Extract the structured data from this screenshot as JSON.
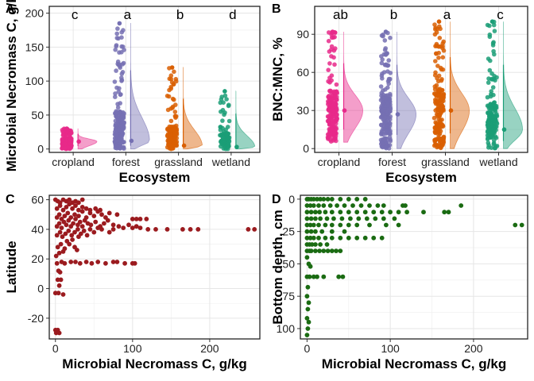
{
  "chart_data": [
    {
      "panel": "A",
      "type": "scatter",
      "subtype": "raincloud (jittered points + half violin + median)",
      "xlabel": "Ecosystem",
      "ylabel": "Microbial Necromass C, g/kg",
      "categories": [
        "cropland",
        "forest",
        "grassland",
        "wetland"
      ],
      "significance_letters": [
        "c",
        "a",
        "b",
        "d"
      ],
      "ylim": [
        -5,
        210
      ],
      "yticks": [
        0,
        50,
        100,
        150,
        200
      ],
      "grid": true,
      "series": [
        {
          "category": "cropland",
          "color": "#E7298A",
          "median": 11,
          "range": [
            0,
            30
          ],
          "n": 140
        },
        {
          "category": "forest",
          "color": "#7570B3",
          "median": 12,
          "range": [
            0,
            185
          ],
          "n": 200
        },
        {
          "category": "grassland",
          "color": "#D95F02",
          "median": 5,
          "range": [
            0,
            120
          ],
          "n": 160
        },
        {
          "category": "wetland",
          "color": "#1B9E77",
          "median": 3,
          "range": [
            0,
            85
          ],
          "n": 90
        }
      ]
    },
    {
      "panel": "B",
      "type": "scatter",
      "subtype": "raincloud (jittered points + half violin + median)",
      "xlabel": "Ecosystem",
      "ylabel": "BNC:MNC, %",
      "categories": [
        "cropland",
        "forest",
        "grassland",
        "wetland"
      ],
      "significance_letters": [
        "ab",
        "b",
        "a",
        "c"
      ],
      "ylim": [
        -3,
        112
      ],
      "yticks": [
        0,
        30,
        60,
        90
      ],
      "grid": true,
      "series": [
        {
          "category": "cropland",
          "color": "#E7298A",
          "median": 30,
          "range": [
            5,
            92
          ],
          "n": 180
        },
        {
          "category": "forest",
          "color": "#7570B3",
          "median": 27,
          "range": [
            0,
            92
          ],
          "n": 200
        },
        {
          "category": "grassland",
          "color": "#D95F02",
          "median": 30,
          "range": [
            0,
            100
          ],
          "n": 180
        },
        {
          "category": "wetland",
          "color": "#1B9E77",
          "median": 15,
          "range": [
            0,
            100
          ],
          "n": 160
        }
      ]
    },
    {
      "panel": "C",
      "type": "scatter",
      "xlabel": "Microbial Necromass C, g/kg",
      "ylabel": "Latitude",
      "xlim": [
        -8,
        265
      ],
      "ylim": [
        -34,
        63
      ],
      "xticks": [
        0,
        100,
        200
      ],
      "yticks": [
        -20,
        0,
        20,
        40,
        60
      ],
      "color": "#9B1B1F",
      "grid": true,
      "points": [
        [
          0,
          -28
        ],
        [
          2,
          -29
        ],
        [
          1,
          -30
        ],
        [
          3,
          -28
        ],
        [
          5,
          -30
        ],
        [
          0,
          -3
        ],
        [
          4,
          -3
        ],
        [
          10,
          -4
        ],
        [
          5,
          2
        ],
        [
          3,
          6
        ],
        [
          7,
          6
        ],
        [
          4,
          12
        ],
        [
          6,
          11
        ],
        [
          2,
          17
        ],
        [
          8,
          18
        ],
        [
          12,
          17
        ],
        [
          20,
          18
        ],
        [
          26,
          18
        ],
        [
          32,
          17
        ],
        [
          40,
          18
        ],
        [
          47,
          17
        ],
        [
          55,
          18
        ],
        [
          65,
          17
        ],
        [
          75,
          18
        ],
        [
          80,
          18
        ],
        [
          90,
          17
        ],
        [
          100,
          17
        ],
        [
          103,
          17
        ],
        [
          1,
          22
        ],
        [
          5,
          24
        ],
        [
          10,
          25
        ],
        [
          3,
          28
        ],
        [
          7,
          30
        ],
        [
          12,
          27
        ],
        [
          15,
          32
        ],
        [
          18,
          30
        ],
        [
          22,
          33
        ],
        [
          25,
          28
        ],
        [
          30,
          35
        ],
        [
          28,
          26
        ],
        [
          2,
          36
        ],
        [
          6,
          38
        ],
        [
          9,
          35
        ],
        [
          13,
          37
        ],
        [
          17,
          39
        ],
        [
          21,
          36
        ],
        [
          25,
          38
        ],
        [
          29,
          40
        ],
        [
          33,
          37
        ],
        [
          37,
          39
        ],
        [
          41,
          36
        ],
        [
          45,
          40
        ],
        [
          50,
          38
        ],
        [
          55,
          41
        ],
        [
          60,
          40
        ],
        [
          70,
          38
        ],
        [
          75,
          40
        ],
        [
          2,
          42
        ],
        [
          5,
          44
        ],
        [
          8,
          41
        ],
        [
          11,
          45
        ],
        [
          14,
          43
        ],
        [
          17,
          46
        ],
        [
          20,
          42
        ],
        [
          23,
          44
        ],
        [
          26,
          47
        ],
        [
          29,
          43
        ],
        [
          32,
          45
        ],
        [
          35,
          42
        ],
        [
          38,
          46
        ],
        [
          42,
          44
        ],
        [
          46,
          43
        ],
        [
          52,
          45
        ],
        [
          58,
          42
        ],
        [
          63,
          44
        ],
        [
          68,
          46
        ],
        [
          75,
          43
        ],
        [
          82,
          42
        ],
        [
          88,
          41
        ],
        [
          95,
          43
        ],
        [
          100,
          41
        ],
        [
          105,
          42
        ],
        [
          110,
          41
        ],
        [
          120,
          40
        ],
        [
          130,
          40
        ],
        [
          145,
          40
        ],
        [
          165,
          40
        ],
        [
          175,
          40
        ],
        [
          185,
          40
        ],
        [
          250,
          40
        ],
        [
          258,
          40
        ],
        [
          2,
          48
        ],
        [
          5,
          50
        ],
        [
          8,
          47
        ],
        [
          12,
          49
        ],
        [
          16,
          51
        ],
        [
          20,
          48
        ],
        [
          25,
          50
        ],
        [
          30,
          49
        ],
        [
          35,
          52
        ],
        [
          40,
          48
        ],
        [
          45,
          51
        ],
        [
          50,
          49
        ],
        [
          55,
          52
        ],
        [
          60,
          50
        ],
        [
          65,
          48
        ],
        [
          70,
          51
        ],
        [
          80,
          50
        ],
        [
          100,
          47
        ],
        [
          105,
          47
        ],
        [
          110,
          47
        ],
        [
          118,
          47
        ],
        [
          2,
          54
        ],
        [
          6,
          56
        ],
        [
          10,
          53
        ],
        [
          14,
          55
        ],
        [
          18,
          57
        ],
        [
          22,
          54
        ],
        [
          26,
          56
        ],
        [
          30,
          53
        ],
        [
          35,
          55
        ],
        [
          40,
          54
        ],
        [
          45,
          53
        ],
        [
          52,
          54
        ],
        [
          58,
          53
        ],
        [
          0,
          60
        ],
        [
          3,
          59
        ],
        [
          6,
          58
        ],
        [
          10,
          60
        ],
        [
          14,
          59
        ],
        [
          18,
          60
        ],
        [
          22,
          58
        ],
        [
          26,
          59
        ],
        [
          30,
          58
        ],
        [
          35,
          60
        ]
      ]
    },
    {
      "panel": "D",
      "type": "scatter",
      "xlabel": "Microbial Necromass C, g/kg",
      "ylabel": "Bottom depth, cm",
      "xlim": [
        -8,
        265
      ],
      "ylim": [
        108,
        -3
      ],
      "xticks": [
        0,
        100,
        200
      ],
      "yticks": [
        0,
        25,
        50,
        75,
        100
      ],
      "color": "#1A6B12",
      "grid": true,
      "points": [
        [
          0,
          0
        ],
        [
          2,
          0
        ],
        [
          5,
          0
        ],
        [
          8,
          0
        ],
        [
          12,
          0
        ],
        [
          16,
          0
        ],
        [
          20,
          0
        ],
        [
          25,
          0
        ],
        [
          30,
          0
        ],
        [
          40,
          0
        ],
        [
          50,
          0
        ],
        [
          60,
          0
        ],
        [
          70,
          0
        ],
        [
          0,
          5
        ],
        [
          4,
          5
        ],
        [
          8,
          5
        ],
        [
          14,
          5
        ],
        [
          20,
          5
        ],
        [
          28,
          5
        ],
        [
          36,
          5
        ],
        [
          45,
          5
        ],
        [
          55,
          5
        ],
        [
          65,
          5
        ],
        [
          75,
          5
        ],
        [
          85,
          5
        ],
        [
          92,
          5
        ],
        [
          115,
          5
        ],
        [
          118,
          5
        ],
        [
          185,
          5
        ],
        [
          0,
          10
        ],
        [
          5,
          10
        ],
        [
          10,
          10
        ],
        [
          15,
          10
        ],
        [
          22,
          10
        ],
        [
          30,
          10
        ],
        [
          40,
          10
        ],
        [
          50,
          10
        ],
        [
          60,
          10
        ],
        [
          70,
          10
        ],
        [
          80,
          10
        ],
        [
          90,
          10
        ],
        [
          100,
          10
        ],
        [
          110,
          10
        ],
        [
          120,
          10
        ],
        [
          140,
          10
        ],
        [
          165,
          10
        ],
        [
          170,
          10
        ],
        [
          0,
          15
        ],
        [
          5,
          15
        ],
        [
          10,
          15
        ],
        [
          16,
          15
        ],
        [
          24,
          15
        ],
        [
          32,
          15
        ],
        [
          42,
          15
        ],
        [
          52,
          15
        ],
        [
          62,
          15
        ],
        [
          72,
          15
        ],
        [
          82,
          15
        ],
        [
          92,
          15
        ],
        [
          105,
          15
        ],
        [
          0,
          20
        ],
        [
          4,
          20
        ],
        [
          8,
          20
        ],
        [
          14,
          20
        ],
        [
          22,
          20
        ],
        [
          30,
          20
        ],
        [
          40,
          20
        ],
        [
          50,
          20
        ],
        [
          60,
          20
        ],
        [
          75,
          20
        ],
        [
          95,
          20
        ],
        [
          110,
          20
        ],
        [
          250,
          20
        ],
        [
          258,
          20
        ],
        [
          0,
          25
        ],
        [
          5,
          25
        ],
        [
          10,
          25
        ],
        [
          18,
          25
        ],
        [
          30,
          25
        ],
        [
          45,
          25
        ],
        [
          0,
          30
        ],
        [
          4,
          30
        ],
        [
          8,
          30
        ],
        [
          14,
          30
        ],
        [
          22,
          30
        ],
        [
          30,
          30
        ],
        [
          40,
          30
        ],
        [
          50,
          30
        ],
        [
          60,
          30
        ],
        [
          70,
          30
        ],
        [
          80,
          30
        ],
        [
          90,
          30
        ],
        [
          0,
          35
        ],
        [
          3,
          35
        ],
        [
          6,
          35
        ],
        [
          10,
          35
        ],
        [
          16,
          35
        ],
        [
          24,
          35
        ],
        [
          0,
          40
        ],
        [
          3,
          40
        ],
        [
          5,
          40
        ],
        [
          10,
          40
        ],
        [
          15,
          40
        ],
        [
          20,
          40
        ],
        [
          25,
          40
        ],
        [
          30,
          40
        ],
        [
          35,
          40
        ],
        [
          40,
          40
        ],
        [
          0,
          45
        ],
        [
          2,
          50
        ],
        [
          4,
          52
        ],
        [
          0,
          60
        ],
        [
          3,
          60
        ],
        [
          8,
          60
        ],
        [
          12,
          60
        ],
        [
          20,
          60
        ],
        [
          38,
          60
        ],
        [
          43,
          60
        ],
        [
          1,
          68
        ],
        [
          0,
          75
        ],
        [
          2,
          80
        ],
        [
          1,
          85
        ],
        [
          0,
          92
        ],
        [
          2,
          95
        ],
        [
          1,
          100
        ],
        [
          0,
          105
        ]
      ]
    }
  ]
}
